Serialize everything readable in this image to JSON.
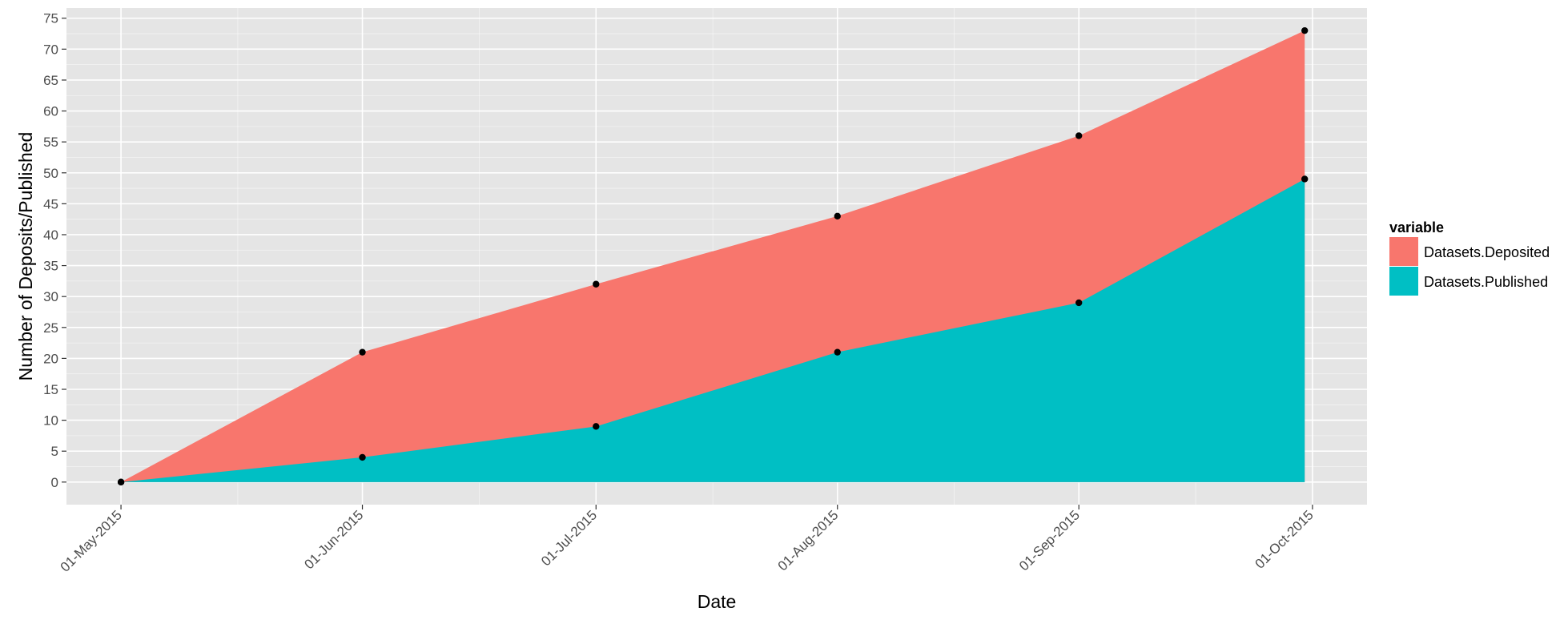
{
  "chart_data": {
    "type": "area",
    "stacked": false,
    "xlabel": "Date",
    "ylabel": "Number of Deposits/Published",
    "x": [
      "2015-05-01",
      "2015-06-01",
      "2015-07-01",
      "2015-08-01",
      "2015-09-01",
      "2015-09-30"
    ],
    "x_tick_labels": [
      "01-May-2015",
      "01-Jun-2015",
      "01-Jul-2015",
      "01-Aug-2015",
      "01-Sep-2015",
      "01-Oct-2015"
    ],
    "x_tick_dates": [
      "2015-05-01",
      "2015-06-01",
      "2015-07-01",
      "2015-08-01",
      "2015-09-01",
      "2015-10-01"
    ],
    "xlim": [
      "2015-04-24",
      "2015-10-08"
    ],
    "ylim": [
      -3.65,
      76.65
    ],
    "y_ticks": [
      0,
      5,
      10,
      15,
      20,
      25,
      30,
      35,
      40,
      45,
      50,
      55,
      60,
      65,
      70,
      75
    ],
    "grid": true,
    "panel_background": "#e5e5e5",
    "grid_color": "#ffffff",
    "legend": {
      "title": "variable",
      "position": "right"
    },
    "series": [
      {
        "name": "Datasets.Deposited",
        "color": "#F8766D",
        "values": [
          0,
          21,
          32,
          43,
          56,
          73
        ]
      },
      {
        "name": "Datasets.Published",
        "color": "#00BFC4",
        "values": [
          0,
          4,
          9,
          21,
          29,
          49
        ]
      }
    ],
    "point_color": "#000000"
  }
}
